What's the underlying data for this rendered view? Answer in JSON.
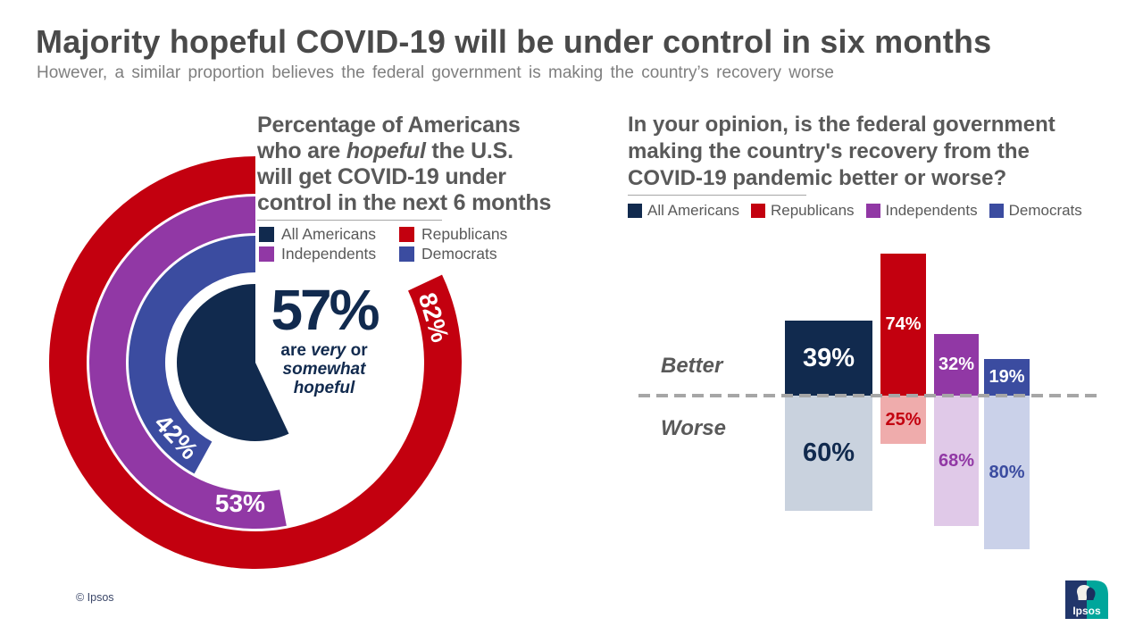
{
  "header": {
    "title": "Majority hopeful COVID-19 will be under control in six months",
    "subtitle": "However, a similar proportion believes the federal government is making the country’s recovery worse"
  },
  "colors": {
    "groups": {
      "All Americans": "#112A4E",
      "Republicans": "#C3000F",
      "Independents": "#9138A5",
      "Democrats": "#3B4CA0"
    },
    "groups_light": {
      "All Americans": "#C9D2DE",
      "Republicans": "#EFACAC",
      "Independents": "#E0C9E8",
      "Democrats": "#CAD1E9"
    },
    "heading_gray": "#595959",
    "divider_gray": "#A6A6A6"
  },
  "chart_data": [
    {
      "type": "radial_gauge",
      "title": "Percentage of Americans who are hopeful the U.S. will get COVID-19 under control in the next 6 months",
      "title_lines": [
        [
          {
            "t": "Percentage of Americans"
          }
        ],
        [
          {
            "t": "who are "
          },
          {
            "t": "hopeful",
            "i": true
          },
          {
            "t": " the U.S."
          }
        ],
        [
          {
            "t": "will get COVID-19 under"
          }
        ],
        [
          {
            "t": "control in the next 6 months"
          }
        ]
      ],
      "legend": [
        "All Americans",
        "Republicans",
        "Independents",
        "Democrats"
      ],
      "units": "%",
      "start_angle_deg": 0,
      "direction": "counterclockwise",
      "center": {
        "group": "All Americans",
        "value": 57,
        "label": "57%",
        "note": "are very or somewhat hopeful",
        "note_lines": [
          [
            {
              "t": "are "
            },
            {
              "t": "very",
              "i": true
            },
            {
              "t": " or"
            }
          ],
          [
            {
              "t": "somewhat",
              "i": true
            }
          ],
          [
            {
              "t": "hopeful",
              "i": true
            }
          ]
        ]
      },
      "rings": [
        {
          "group": "Republicans",
          "value": 82,
          "label": "82%"
        },
        {
          "group": "Independents",
          "value": 53,
          "label": "53%"
        },
        {
          "group": "Democrats",
          "value": 42,
          "label": "42%"
        }
      ]
    },
    {
      "type": "diverging_bar",
      "title": "In your opinion, is the federal government making the country's recovery from the COVID-19 pandemic better or worse?",
      "title_lines": [
        "In your opinion, is the federal government",
        "making the country's recovery from the",
        "COVID-19 pandemic better or worse?"
      ],
      "legend": [
        "All Americans",
        "Republicans",
        "Independents",
        "Democrats"
      ],
      "categories": [
        "All Americans",
        "Republicans",
        "Independents",
        "Democrats"
      ],
      "units": "%",
      "series": [
        {
          "name": "Better",
          "values": [
            39,
            74,
            32,
            19
          ],
          "labels": [
            "39%",
            "74%",
            "32%",
            "19%"
          ]
        },
        {
          "name": "Worse",
          "values": [
            60,
            25,
            68,
            80
          ],
          "labels": [
            "60%",
            "25%",
            "68%",
            "80%"
          ]
        }
      ],
      "axis": {
        "baseline_style": "dashed",
        "better_side": "above",
        "worse_side": "below"
      }
    }
  ],
  "footer": {
    "copyright": "© Ipsos",
    "logo_text": "Ipsos"
  }
}
